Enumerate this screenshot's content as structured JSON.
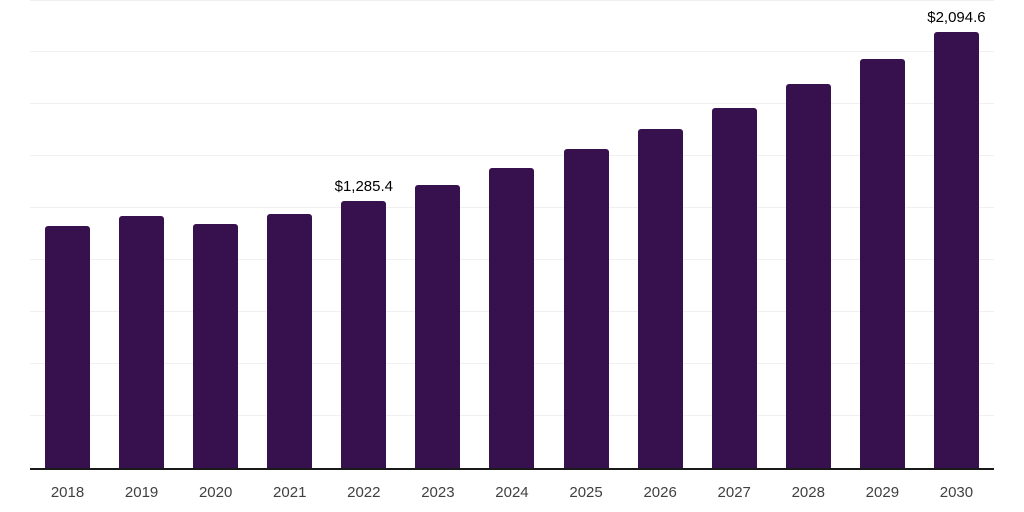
{
  "chart_data": {
    "type": "bar",
    "title": "",
    "xlabel": "",
    "ylabel": "",
    "categories": [
      "2018",
      "2019",
      "2020",
      "2021",
      "2022",
      "2023",
      "2024",
      "2025",
      "2026",
      "2027",
      "2028",
      "2029",
      "2030"
    ],
    "values": [
      1162,
      1213,
      1172,
      1221,
      1285.4,
      1360,
      1441,
      1533,
      1630,
      1731,
      1846,
      1967,
      2094.6
    ],
    "annotations": [
      {
        "index": 4,
        "text": "$1,285.4"
      },
      {
        "index": 12,
        "text": "$2,094.6"
      }
    ],
    "ylim": [
      0,
      2250
    ],
    "gridline_step": 250,
    "grid": true,
    "legend": false,
    "bar_color": "#36114e"
  },
  "colors": {
    "background": "#ffffff",
    "bar": "#36114e",
    "axis_line": "#1a1a1a",
    "gridline": "#f0f0f0",
    "tick_label": "#404040",
    "data_label": "#000000"
  }
}
